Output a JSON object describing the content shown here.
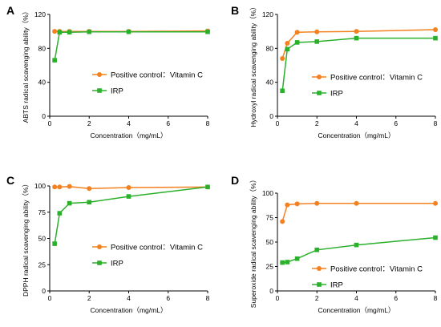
{
  "colors": {
    "vitamin_c": "#F4811F",
    "irp": "#2BB02B",
    "axis": "#000000"
  },
  "chart_data": [
    {
      "panel": "A",
      "type": "line",
      "xlabel": "Concentration（mg/mL）",
      "ylabel": "ABTS radical scavenging ability（%）",
      "xlim": [
        0,
        8
      ],
      "ylim": [
        0,
        120
      ],
      "xticks": [
        0,
        2,
        4,
        6,
        8
      ],
      "yticks": [
        0,
        40,
        80,
        120
      ],
      "legend_position": "center-right",
      "series": [
        {
          "name": "Positive control：Vitamin C",
          "marker": "circle",
          "x": [
            0.25,
            0.5,
            1,
            2,
            4,
            8
          ],
          "y": [
            100,
            100,
            100,
            100,
            100,
            100.5
          ]
        },
        {
          "name": "IRP",
          "marker": "square",
          "x": [
            0.25,
            0.5,
            1,
            2,
            4,
            8
          ],
          "y": [
            66,
            99,
            99,
            99.5,
            99.5,
            99.5
          ]
        }
      ]
    },
    {
      "panel": "B",
      "type": "line",
      "xlabel": "Concentration（mg/mL）",
      "ylabel": "Hydroxyl radical scavenging ability（%）",
      "xlim": [
        0,
        8
      ],
      "ylim": [
        0,
        120
      ],
      "xticks": [
        0,
        2,
        4,
        6,
        8
      ],
      "yticks": [
        0,
        40,
        80,
        120
      ],
      "legend_position": "center-right",
      "series": [
        {
          "name": "Positive control：Vitamin C",
          "marker": "circle",
          "x": [
            0.25,
            0.5,
            1,
            2,
            4,
            8
          ],
          "y": [
            68,
            86,
            99,
            99.5,
            100,
            102
          ]
        },
        {
          "name": "IRP",
          "marker": "square",
          "x": [
            0.25,
            0.5,
            1,
            2,
            4,
            8
          ],
          "y": [
            30,
            79,
            87,
            88,
            92,
            92
          ]
        }
      ]
    },
    {
      "panel": "C",
      "type": "line",
      "xlabel": "Concentration（mg/mL）",
      "ylabel": "DPPH radical scavenging ability（%）",
      "xlim": [
        0,
        8
      ],
      "ylim": [
        0,
        100
      ],
      "xticks": [
        0,
        2,
        4,
        6,
        8
      ],
      "yticks": [
        0,
        25,
        50,
        75,
        100
      ],
      "legend_position": "center-right",
      "series": [
        {
          "name": "Positive control：Vitamin C",
          "marker": "circle",
          "x": [
            0.25,
            0.5,
            1,
            2,
            4,
            8
          ],
          "y": [
            99,
            99,
            99.5,
            97.5,
            98.5,
            99
          ]
        },
        {
          "name": "IRP",
          "marker": "square",
          "x": [
            0.25,
            0.5,
            1,
            2,
            4,
            8
          ],
          "y": [
            45,
            74,
            83.5,
            84.5,
            90,
            99
          ]
        }
      ]
    },
    {
      "panel": "D",
      "type": "line",
      "xlabel": "Concentration（mg/mL）",
      "ylabel": "Superoxide radical scavenging ability（%）",
      "xlim": [
        0,
        8
      ],
      "ylim": [
        0,
        100
      ],
      "xticks": [
        0,
        2,
        4,
        6,
        8
      ],
      "yticks": [
        0,
        25,
        50,
        75,
        100
      ],
      "legend_position": "lower-right",
      "series": [
        {
          "name": "Positive control：Vitamin C",
          "marker": "circle",
          "x": [
            0.25,
            0.5,
            1,
            2,
            4,
            8
          ],
          "y": [
            71,
            88,
            89,
            89.5,
            89.5,
            89.5
          ]
        },
        {
          "name": "IRP",
          "marker": "square",
          "x": [
            0.25,
            0.5,
            1,
            2,
            4,
            8
          ],
          "y": [
            29,
            29.5,
            33,
            42,
            47,
            54.5
          ]
        }
      ]
    }
  ]
}
